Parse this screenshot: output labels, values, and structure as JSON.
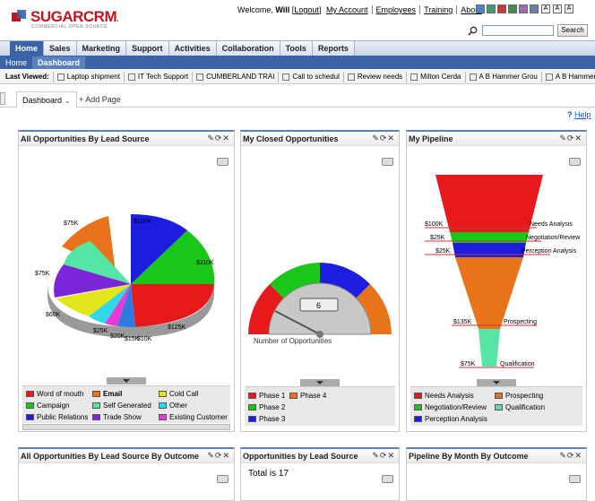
{
  "brand": {
    "name_prefix": "SUGAR",
    "name_suffix": "CRM",
    "trademark": ".",
    "tagline": "COMMERCIAL OPEN SOURCE"
  },
  "header": {
    "welcome_prefix": "Welcome,",
    "user": "Will",
    "logout": "Logout",
    "links": [
      "My Account",
      "Employees",
      "Training",
      "About"
    ],
    "theme_colors": [
      "#4a86c5",
      "#3d9e6e",
      "#c8392f",
      "#4a8a4a",
      "#9a6fb0",
      "#6a7faa"
    ],
    "font_buttons": [
      "A",
      "A",
      "A"
    ],
    "search_placeholder": "",
    "search_button": "Search"
  },
  "tabs": [
    "Home",
    "Sales",
    "Marketing",
    "Support",
    "Activities",
    "Collaboration",
    "Tools",
    "Reports"
  ],
  "subtabs": [
    "Home",
    "Dashboard"
  ],
  "last_viewed": {
    "label": "Last Viewed:",
    "items": [
      "Laptop shipment",
      "IT Tech Support",
      "CUMBERLAND TRAI",
      "Call to schedul",
      "Review needs",
      "Milton Cerda",
      "A B Hammer Grou",
      "A B Hammer Grou"
    ]
  },
  "dashboard": {
    "tab_label": "Dashboard",
    "tab_caret": "⌄",
    "add_page": "+ Add Page",
    "help": "Help",
    "help_icon": "?"
  },
  "dashlets": {
    "lead_source": {
      "title": "All Opportunities By Lead Source",
      "tools": "✎⟳✕",
      "labels": [
        "$75K",
        "$100K",
        "$110K",
        "$125K",
        "$10K",
        "$15K",
        "$20K",
        "$25K",
        "$60K",
        "$75K"
      ],
      "legend": [
        "Word of mouth",
        "Email",
        "Cold Call",
        "Campaign",
        "Self Generated",
        "Other",
        "Public Relations",
        "Trade Show",
        "Existing Customer"
      ],
      "legend_colors": [
        "#e8191b",
        "#e8731b",
        "#e5e51c",
        "#19c719",
        "#55e5a5",
        "#33d8e8",
        "#1d1de0",
        "#7a26d9",
        "#e63ad9"
      ]
    },
    "closed": {
      "title": "My Closed Opportunities",
      "tools": "✎⟳✕",
      "gauge_value": "6",
      "gauge_label": "Number of Opportunities",
      "legend": [
        "Phase 1",
        "Phase 4",
        "Phase 2",
        "Phase 3"
      ],
      "legend_colors": [
        "#e8191b",
        "#e8731b",
        "#19c719",
        "#1d1de0"
      ]
    },
    "pipeline": {
      "title": "My Pipeline",
      "tools": "✎⟳✕",
      "stages": [
        {
          "amount": "$100K",
          "name": "Needs Analysis"
        },
        {
          "amount": "$25K",
          "name": "Negotiation/Review"
        },
        {
          "amount": "$25K",
          "name": "Perception Analysis"
        },
        {
          "amount": "$135K",
          "name": "Prospecting"
        },
        {
          "amount": "$75K",
          "name": "Qualification"
        }
      ],
      "legend": [
        "Needs Analysis",
        "Prospecting",
        "Negotiation/Review",
        "Qualification",
        "Perception Analysis"
      ],
      "legend_colors": [
        "#e8191b",
        "#e8731b",
        "#19c719",
        "#55e5a5",
        "#1d1de0"
      ]
    },
    "bottom": [
      {
        "title": "All Opportunities By Lead Source By Outcome",
        "tools": "✎⟳✕"
      },
      {
        "title": "Opportunities by Lead Source",
        "tools": "✎⟳✕",
        "total": "Total is 17"
      },
      {
        "title": "Pipeline By Month By Outcome",
        "tools": "✎⟳✕"
      }
    ]
  }
}
